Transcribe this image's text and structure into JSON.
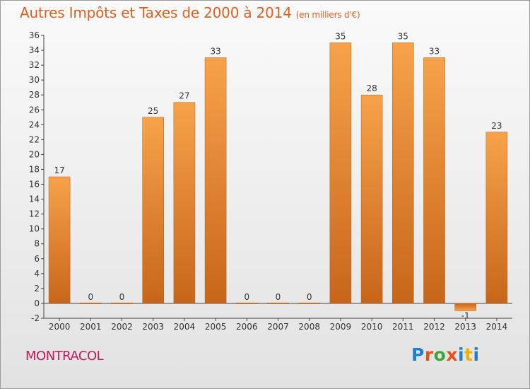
{
  "header": {
    "title": "Autres Impôts et Taxes de 2000 à 2014",
    "unit": "(en milliers d'€)"
  },
  "footer": {
    "place": "MONTRACOL",
    "logo": "Proxiti",
    "logo_colors": [
      "#1e7fd0",
      "#e8511c",
      "#3aa63a",
      "#e8511c",
      "#1e7fd0",
      "#f2b200",
      "#1e7fd0"
    ]
  },
  "chart_data": {
    "type": "bar",
    "title": "Autres Impôts et Taxes de 2000 à 2014",
    "subtitle": "(en milliers d'€)",
    "categories": [
      "2000",
      "2001",
      "2002",
      "2003",
      "2004",
      "2005",
      "2006",
      "2007",
      "2008",
      "2009",
      "2010",
      "2011",
      "2012",
      "2013",
      "2014"
    ],
    "values": [
      17,
      0,
      0,
      25,
      27,
      33,
      0,
      0,
      0,
      35,
      28,
      35,
      33,
      -1,
      23
    ],
    "ylim": [
      -2,
      36
    ],
    "yticks": [
      -2,
      0,
      2,
      4,
      6,
      8,
      10,
      12,
      14,
      16,
      18,
      20,
      22,
      24,
      26,
      28,
      30,
      32,
      34,
      36
    ],
    "grid": false,
    "bar_color": "#f0902e",
    "bar_color_dark": "#c8681a"
  }
}
